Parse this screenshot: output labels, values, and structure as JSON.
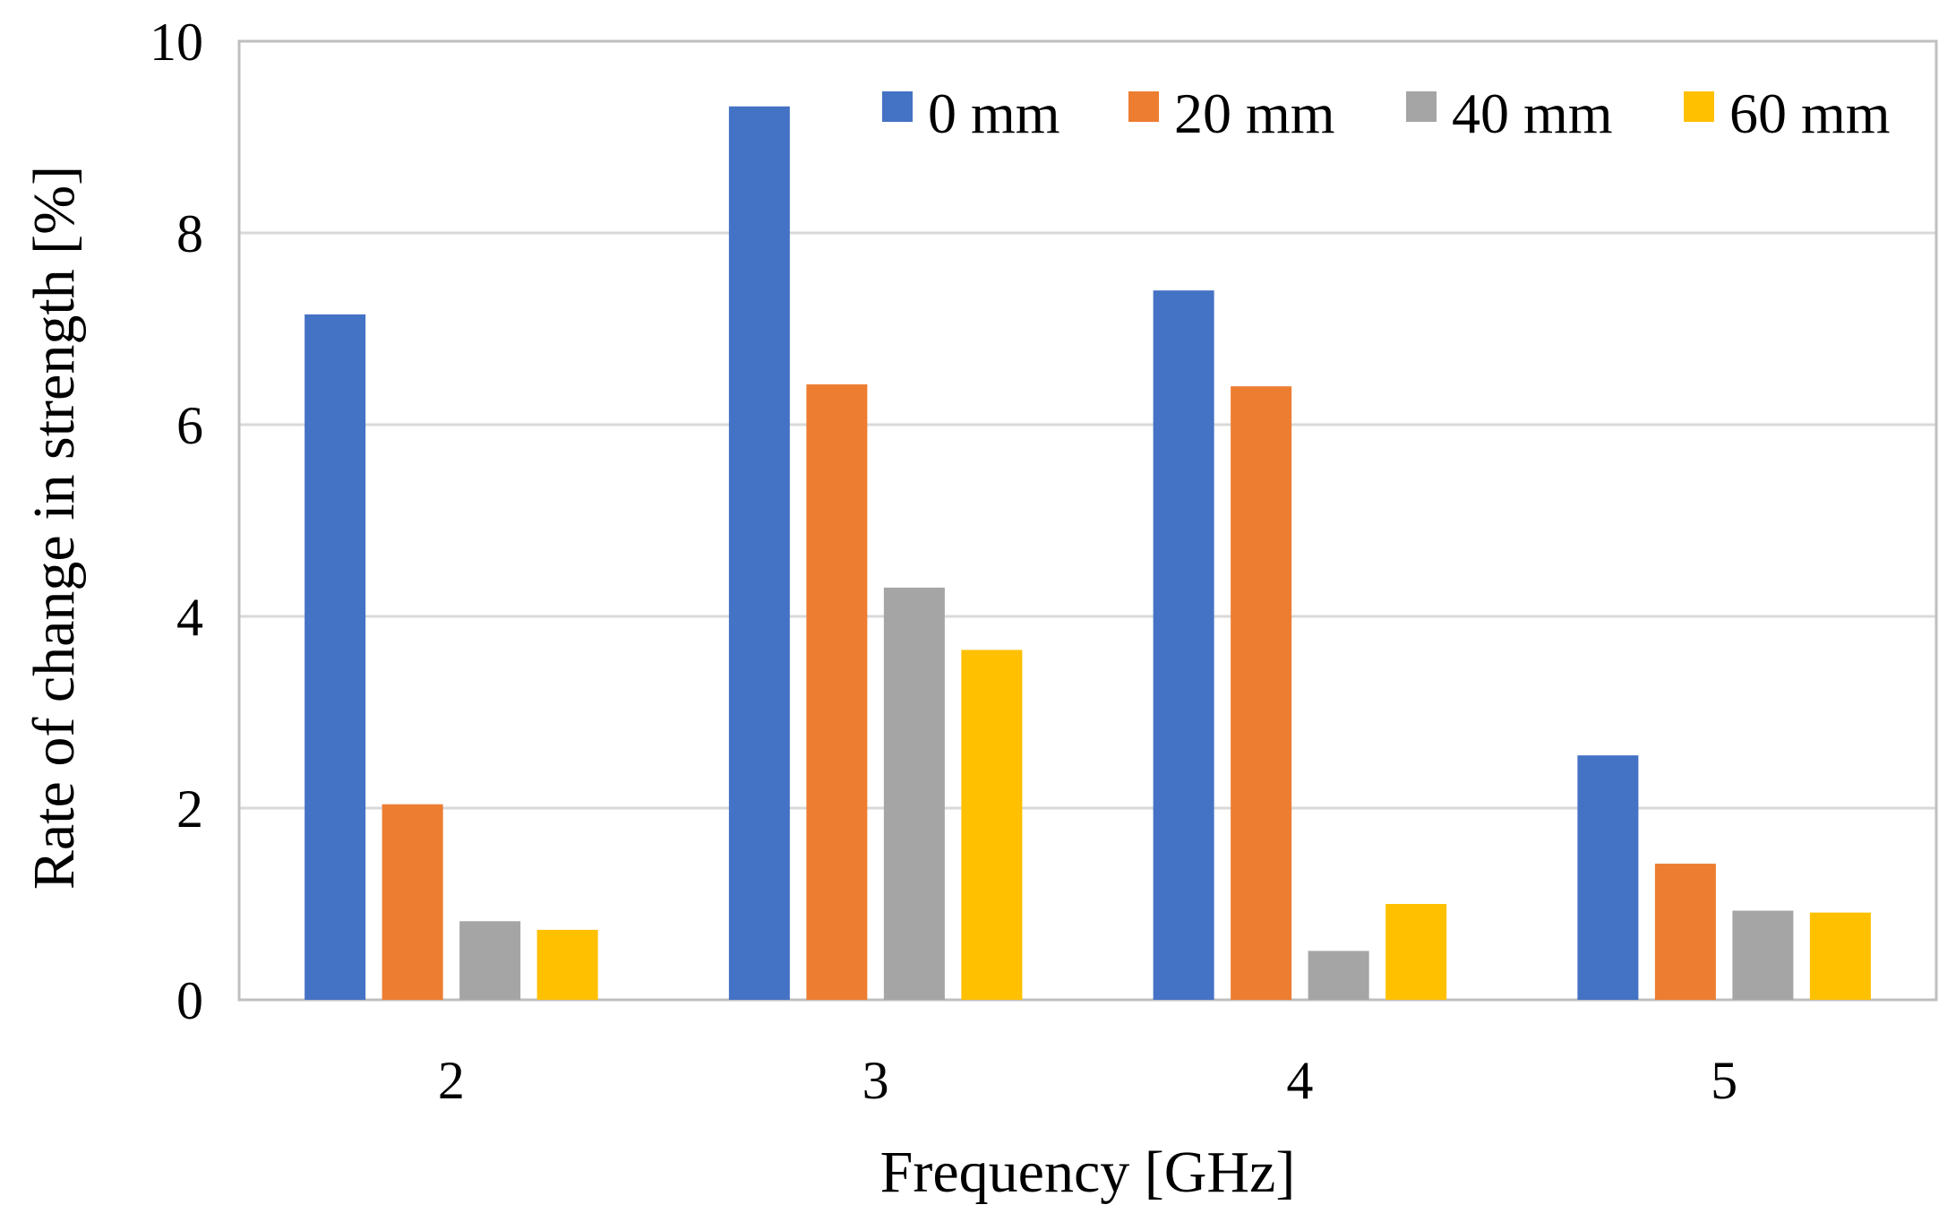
{
  "chart_data": {
    "type": "bar",
    "title": "",
    "xlabel": "Frequency [GHz]",
    "ylabel": "Rate of change in strength [%]",
    "categories": [
      "2",
      "3",
      "4",
      "5"
    ],
    "ylim": [
      0,
      10
    ],
    "yticks": [
      "0",
      "2",
      "4",
      "6",
      "8",
      "10"
    ],
    "grid": true,
    "legend_position": "top-right",
    "series": [
      {
        "name": "0 mm",
        "color": "#4472C4",
        "values": [
          7.15,
          9.32,
          7.4,
          2.55
        ]
      },
      {
        "name": "20 mm",
        "color": "#ED7D31",
        "values": [
          2.04,
          6.42,
          6.4,
          1.42
        ]
      },
      {
        "name": "40 mm",
        "color": "#A5A5A5",
        "values": [
          0.82,
          4.3,
          0.51,
          0.93
        ]
      },
      {
        "name": "60 mm",
        "color": "#FFC000",
        "values": [
          0.73,
          3.65,
          1.0,
          0.91
        ]
      }
    ]
  }
}
